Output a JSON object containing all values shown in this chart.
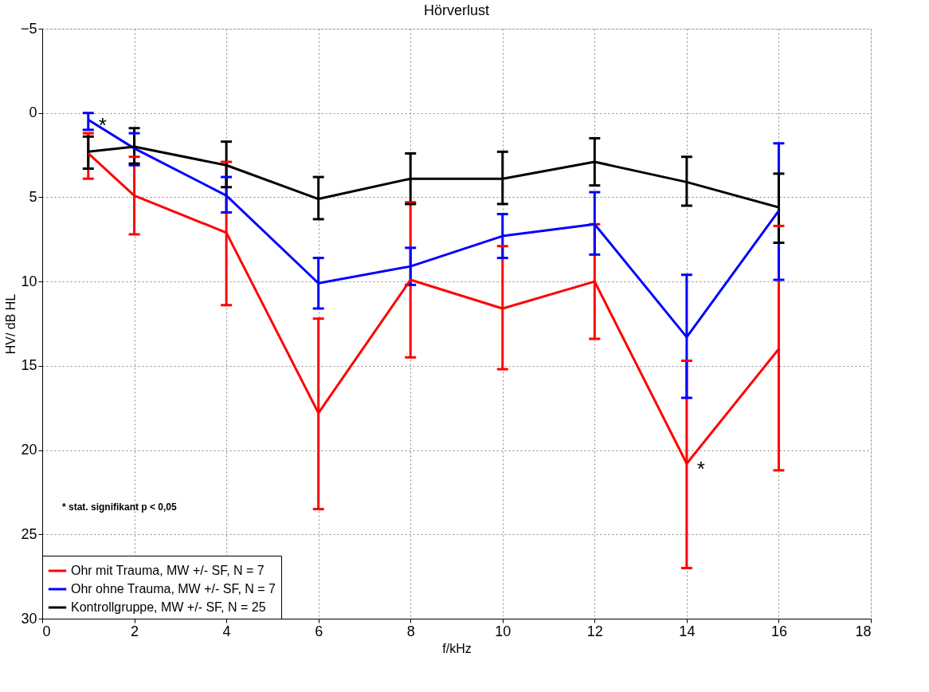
{
  "chart_data": {
    "type": "line",
    "title": "Hörverlust",
    "xlabel": "f/kHz",
    "ylabel": "HV/ dB HL",
    "x": [
      1,
      2,
      4,
      6,
      8,
      10,
      12,
      14,
      16
    ],
    "series": [
      {
        "name": "Ohr mit Trauma, MW +/- SF, N = 7",
        "color": "#ff0000",
        "values": [
          2.4,
          4.9,
          7.1,
          17.8,
          9.9,
          11.6,
          10.0,
          20.8,
          14.0
        ],
        "errors": [
          [
            1.2,
            3.9
          ],
          [
            2.6,
            7.2
          ],
          [
            2.9,
            11.4
          ],
          [
            12.2,
            23.5
          ],
          [
            5.3,
            14.5
          ],
          [
            7.9,
            15.2
          ],
          [
            6.6,
            13.4
          ],
          [
            14.7,
            27.0
          ],
          [
            6.7,
            21.2
          ]
        ]
      },
      {
        "name": "Ohr ohne Trauma, MW +/- SF, N = 7",
        "color": "#0000ff",
        "values": [
          0.4,
          2.1,
          4.9,
          10.1,
          9.1,
          7.3,
          6.6,
          13.3,
          5.8
        ],
        "errors": [
          [
            0.0,
            1.0
          ],
          [
            1.2,
            3.1
          ],
          [
            3.8,
            5.9
          ],
          [
            8.6,
            11.6
          ],
          [
            8.0,
            10.2
          ],
          [
            6.0,
            8.6
          ],
          [
            4.7,
            8.4
          ],
          [
            9.6,
            16.9
          ],
          [
            1.8,
            9.9
          ]
        ]
      },
      {
        "name": "Kontrollgruppe, MW +/- SF, N = 25",
        "color": "#000000",
        "values": [
          2.3,
          2.0,
          3.1,
          5.1,
          3.9,
          3.9,
          2.9,
          4.1,
          5.6
        ],
        "errors": [
          [
            1.4,
            3.3
          ],
          [
            0.9,
            3.0
          ],
          [
            1.7,
            4.4
          ],
          [
            3.8,
            6.3
          ],
          [
            2.4,
            5.4
          ],
          [
            2.3,
            5.4
          ],
          [
            1.5,
            4.3
          ],
          [
            2.6,
            5.5
          ],
          [
            3.6,
            7.7
          ]
        ]
      }
    ],
    "xlim": [
      0,
      18
    ],
    "xticks": [
      0,
      2,
      4,
      6,
      8,
      10,
      12,
      14,
      16,
      18
    ],
    "ylim": [
      30,
      -5
    ],
    "yticks": [
      -5,
      0,
      5,
      10,
      15,
      20,
      25,
      30
    ],
    "grid": true,
    "legend": "bottom left",
    "marker": "none",
    "line_style": "solid",
    "annotations": [
      {
        "text": "*",
        "x": 1,
        "y": 0.4
      },
      {
        "text": "*",
        "x": 14,
        "y": 20.8
      },
      "*  stat. signifikant p < 0,05"
    ]
  }
}
